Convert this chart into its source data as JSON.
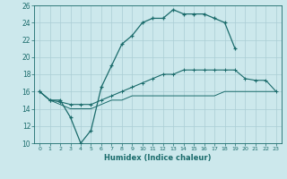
{
  "xlabel": "Humidex (Indice chaleur)",
  "bg_color": "#cce8ec",
  "grid_color": "#aacdd4",
  "line_color": "#1a6b6b",
  "xlim": [
    -0.5,
    23.5
  ],
  "ylim": [
    10,
    26
  ],
  "xticks": [
    0,
    1,
    2,
    3,
    4,
    5,
    6,
    7,
    8,
    9,
    10,
    11,
    12,
    13,
    14,
    15,
    16,
    17,
    18,
    19,
    20,
    21,
    22,
    23
  ],
  "yticks": [
    10,
    12,
    14,
    16,
    18,
    20,
    22,
    24,
    26
  ],
  "line1_x": [
    0,
    1,
    2,
    3,
    4,
    5,
    6,
    7,
    8,
    9,
    10,
    11,
    12,
    13,
    14,
    15,
    16,
    17,
    18,
    19
  ],
  "line1_y": [
    16,
    15,
    15,
    13,
    10,
    11.5,
    16.5,
    19,
    21.5,
    22.5,
    24,
    24.5,
    24.5,
    25.5,
    25,
    25,
    25,
    24.5,
    24,
    21
  ],
  "line2_x": [
    0,
    1,
    2,
    3,
    4,
    5,
    6,
    7,
    8,
    9,
    10,
    11,
    12,
    13,
    14,
    15,
    16,
    17,
    18,
    19,
    20,
    21,
    22,
    23
  ],
  "line2_y": [
    16,
    15,
    14.8,
    14.5,
    14.5,
    14.5,
    15,
    15.5,
    16,
    16.5,
    17,
    17.5,
    18,
    18,
    18.5,
    18.5,
    18.5,
    18.5,
    18.5,
    18.5,
    17.5,
    17.3,
    17.3,
    16
  ],
  "line3_x": [
    0,
    1,
    2,
    3,
    4,
    5,
    6,
    7,
    8,
    9,
    10,
    11,
    12,
    13,
    14,
    15,
    16,
    17,
    18,
    19,
    20,
    21,
    22,
    23
  ],
  "line3_y": [
    16,
    15,
    14.5,
    14,
    14,
    14,
    14.5,
    15,
    15,
    15.5,
    15.5,
    15.5,
    15.5,
    15.5,
    15.5,
    15.5,
    15.5,
    15.5,
    16,
    16,
    16,
    16,
    16,
    16
  ]
}
